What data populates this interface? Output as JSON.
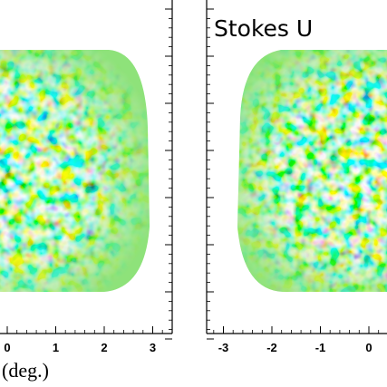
{
  "chart_data": [
    {
      "type": "heatmap",
      "title": "",
      "xlabel": "(deg.)",
      "x_ticks": [
        "0",
        "1",
        "2",
        "3"
      ],
      "xlim": [
        -3.5,
        3.5
      ],
      "colormap": [
        "#00008f",
        "#0060ff",
        "#00c0ff",
        "#80ff80",
        "#ffe000",
        "#ff6000",
        "#a00000"
      ],
      "background_value_color": "#8ee27a"
    },
    {
      "type": "heatmap",
      "title": "Stokes U",
      "xlabel": "",
      "x_ticks": [
        "-3",
        "-2",
        "-1",
        "0"
      ],
      "xlim": [
        -3.5,
        3.5
      ],
      "colormap": [
        "#00008f",
        "#0060ff",
        "#00c0ff",
        "#80ff80",
        "#ffe000",
        "#ff6000",
        "#a00000"
      ],
      "background_value_color": "#8ee27a"
    }
  ]
}
